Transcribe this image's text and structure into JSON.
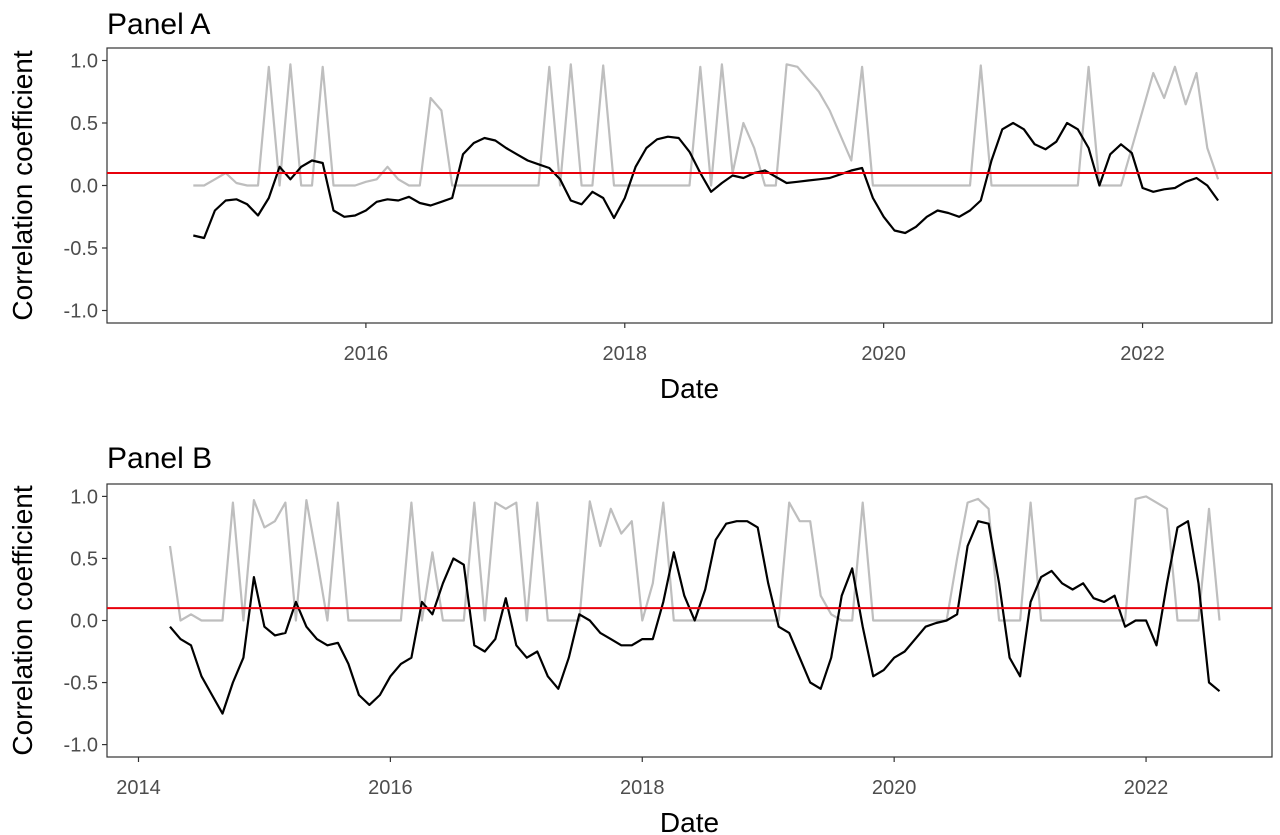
{
  "colors": {
    "primary_series": "#000000",
    "secondary_series": "#bebebe",
    "reference_line": "#e8000b",
    "frame": "#333333",
    "tick_text": "#4d4d4d"
  },
  "chart_data": [
    {
      "type": "line",
      "title": "Panel A",
      "xlabel": "Date",
      "ylabel": "Correlation coefficient",
      "xlim": [
        "2014-01-01",
        "2023-01-01"
      ],
      "ylim": [
        -1.1,
        1.1
      ],
      "x_ticks": [
        "2016",
        "2018",
        "2020",
        "2022"
      ],
      "y_ticks": [
        "1.0",
        "0.5",
        "0.0",
        "-0.5",
        "-1.0"
      ],
      "grid": false,
      "reference_line": 0.1,
      "x": [
        "2014-09",
        "2014-10",
        "2014-11",
        "2014-12",
        "2015-01",
        "2015-02",
        "2015-03",
        "2015-04",
        "2015-05",
        "2015-06",
        "2015-07",
        "2015-08",
        "2015-09",
        "2015-10",
        "2015-11",
        "2015-12",
        "2016-01",
        "2016-02",
        "2016-03",
        "2016-04",
        "2016-05",
        "2016-06",
        "2016-07",
        "2016-08",
        "2016-09",
        "2016-10",
        "2016-11",
        "2016-12",
        "2017-01",
        "2017-02",
        "2017-03",
        "2017-04",
        "2017-05",
        "2017-06",
        "2017-07",
        "2017-08",
        "2017-09",
        "2017-10",
        "2017-11",
        "2017-12",
        "2018-01",
        "2018-02",
        "2018-03",
        "2018-04",
        "2018-05",
        "2018-06",
        "2018-07",
        "2018-08",
        "2018-09",
        "2018-10",
        "2018-11",
        "2018-12",
        "2019-01",
        "2019-02",
        "2019-03",
        "2019-04",
        "2019-05",
        "2019-06",
        "2019-07",
        "2019-08",
        "2019-09",
        "2019-10",
        "2019-11",
        "2019-12",
        "2020-01",
        "2020-02",
        "2020-03",
        "2020-04",
        "2020-05",
        "2020-06",
        "2020-07",
        "2020-08",
        "2020-09",
        "2020-10",
        "2020-11",
        "2020-12",
        "2021-01",
        "2021-02",
        "2021-03",
        "2021-04",
        "2021-05",
        "2021-06",
        "2021-07",
        "2021-08",
        "2021-09",
        "2021-10",
        "2021-11",
        "2021-12",
        "2022-01",
        "2022-02",
        "2022-03",
        "2022-04",
        "2022-05",
        "2022-06",
        "2022-07",
        "2022-08"
      ],
      "series": [
        {
          "values": [
            -0.4,
            -0.42,
            -0.2,
            -0.12,
            -0.11,
            -0.15,
            -0.24,
            -0.1,
            0.15,
            0.05,
            0.15,
            0.2,
            0.18,
            -0.2,
            -0.25,
            -0.24,
            -0.2,
            -0.13,
            -0.11,
            -0.12,
            -0.09,
            -0.14,
            -0.16,
            -0.13,
            -0.1,
            0.25,
            0.34,
            0.38,
            0.36,
            0.3,
            0.25,
            0.2,
            0.17,
            0.14,
            0.05,
            -0.12,
            -0.15,
            -0.05,
            -0.1,
            -0.26,
            -0.1,
            0.15,
            0.3,
            0.37,
            0.39,
            0.38,
            0.27,
            0.1,
            -0.05,
            0.02,
            0.08,
            0.06,
            0.1,
            0.12,
            0.07,
            0.02,
            0.03,
            0.04,
            0.05,
            0.06,
            0.09,
            0.12,
            0.14,
            -0.1,
            -0.25,
            -0.36,
            -0.38,
            -0.33,
            -0.25,
            -0.2,
            -0.22,
            -0.25,
            -0.2,
            -0.12,
            0.2,
            0.45,
            0.5,
            0.45,
            0.33,
            0.29,
            0.35,
            0.5,
            0.45,
            0.3,
            0.0,
            0.25,
            0.33,
            0.26,
            -0.02,
            -0.05,
            -0.03,
            -0.02,
            0.03,
            0.06,
            0.0,
            -0.12
          ]
        },
        {
          "values": [
            0.0,
            0.0,
            0.05,
            0.1,
            0.02,
            0.0,
            0.0,
            0.95,
            0.0,
            0.97,
            0.0,
            0.0,
            0.95,
            0.0,
            0.0,
            0.0,
            0.03,
            0.05,
            0.15,
            0.05,
            0.0,
            0.0,
            0.7,
            0.6,
            0.0,
            0.0,
            0.0,
            0.0,
            0.0,
            0.0,
            0.0,
            0.0,
            0.0,
            0.95,
            0.0,
            0.97,
            0.0,
            0.0,
            0.96,
            0.0,
            0.0,
            0.0,
            0.0,
            0.0,
            0.0,
            0.0,
            0.0,
            0.95,
            0.0,
            0.97,
            0.1,
            0.5,
            0.3,
            0.0,
            0.0,
            0.97,
            0.95,
            0.85,
            0.75,
            0.6,
            0.4,
            0.2,
            0.95,
            0.0,
            0.0,
            0.0,
            0.0,
            0.0,
            0.0,
            0.0,
            0.0,
            0.0,
            0.0,
            0.96,
            0.0,
            0.0,
            0.0,
            0.0,
            0.0,
            0.0,
            0.0,
            0.0,
            0.0,
            0.95,
            0.0,
            0.0,
            0.0,
            0.3,
            0.6,
            0.9,
            0.7,
            0.95,
            0.65,
            0.9,
            0.3,
            0.05
          ]
        }
      ]
    },
    {
      "type": "line",
      "title": "Panel B",
      "xlabel": "Date",
      "ylabel": "Correlation coefficient",
      "xlim": [
        "2013-10-01",
        "2023-01-01"
      ],
      "ylim": [
        -1.1,
        1.1
      ],
      "x_ticks": [
        "2014",
        "2016",
        "2018",
        "2020",
        "2022"
      ],
      "y_ticks": [
        "1.0",
        "0.5",
        "0.0",
        "-0.5",
        "-1.0"
      ],
      "grid": false,
      "reference_line": 0.1,
      "x": [
        "2014-04",
        "2014-05",
        "2014-06",
        "2014-07",
        "2014-08",
        "2014-09",
        "2014-10",
        "2014-11",
        "2014-12",
        "2015-01",
        "2015-02",
        "2015-03",
        "2015-04",
        "2015-05",
        "2015-06",
        "2015-07",
        "2015-08",
        "2015-09",
        "2015-10",
        "2015-11",
        "2015-12",
        "2016-01",
        "2016-02",
        "2016-03",
        "2016-04",
        "2016-05",
        "2016-06",
        "2016-07",
        "2016-08",
        "2016-09",
        "2016-10",
        "2016-11",
        "2016-12",
        "2017-01",
        "2017-02",
        "2017-03",
        "2017-04",
        "2017-05",
        "2017-06",
        "2017-07",
        "2017-08",
        "2017-09",
        "2017-10",
        "2017-11",
        "2017-12",
        "2018-01",
        "2018-02",
        "2018-03",
        "2018-04",
        "2018-05",
        "2018-06",
        "2018-07",
        "2018-08",
        "2018-09",
        "2018-10",
        "2018-11",
        "2018-12",
        "2019-01",
        "2019-02",
        "2019-03",
        "2019-04",
        "2019-05",
        "2019-06",
        "2019-07",
        "2019-08",
        "2019-09",
        "2019-10",
        "2019-11",
        "2019-12",
        "2020-01",
        "2020-02",
        "2020-03",
        "2020-04",
        "2020-05",
        "2020-06",
        "2020-07",
        "2020-08",
        "2020-09",
        "2020-10",
        "2020-11",
        "2020-12",
        "2021-01",
        "2021-02",
        "2021-03",
        "2021-04",
        "2021-05",
        "2021-06",
        "2021-07",
        "2021-08",
        "2021-09",
        "2021-10",
        "2021-11",
        "2021-12",
        "2022-01",
        "2022-02",
        "2022-03",
        "2022-04",
        "2022-05",
        "2022-06",
        "2022-07",
        "2022-08"
      ],
      "series": [
        {
          "values": [
            -0.05,
            -0.15,
            -0.2,
            -0.45,
            -0.6,
            -0.75,
            -0.5,
            -0.3,
            0.35,
            -0.05,
            -0.12,
            -0.1,
            0.15,
            -0.05,
            -0.15,
            -0.2,
            -0.18,
            -0.35,
            -0.6,
            -0.68,
            -0.6,
            -0.45,
            -0.35,
            -0.3,
            0.15,
            0.05,
            0.3,
            0.5,
            0.45,
            -0.2,
            -0.25,
            -0.15,
            0.18,
            -0.2,
            -0.3,
            -0.25,
            -0.45,
            -0.55,
            -0.3,
            0.05,
            0.0,
            -0.1,
            -0.15,
            -0.2,
            -0.2,
            -0.15,
            -0.15,
            0.15,
            0.55,
            0.2,
            0.0,
            0.25,
            0.65,
            0.78,
            0.8,
            0.8,
            0.75,
            0.3,
            -0.05,
            -0.1,
            -0.3,
            -0.5,
            -0.55,
            -0.3,
            0.2,
            0.42,
            -0.05,
            -0.45,
            -0.4,
            -0.3,
            -0.25,
            -0.15,
            -0.05,
            -0.02,
            0.0,
            0.05,
            0.6,
            0.8,
            0.78,
            0.3,
            -0.3,
            -0.45,
            0.15,
            0.35,
            0.4,
            0.3,
            0.25,
            0.3,
            0.18,
            0.15,
            0.2,
            -0.05,
            0.0,
            0.0,
            -0.2,
            0.3,
            0.75,
            0.8,
            0.3,
            -0.5,
            -0.57
          ]
        },
        {
          "values": [
            0.6,
            0.0,
            0.05,
            0.0,
            0.0,
            0.0,
            0.95,
            0.0,
            0.97,
            0.75,
            0.8,
            0.95,
            0.0,
            0.97,
            0.5,
            0.0,
            0.95,
            0.0,
            0.0,
            0.0,
            0.0,
            0.0,
            0.0,
            0.95,
            0.0,
            0.55,
            0.0,
            0.0,
            0.0,
            0.95,
            0.0,
            0.95,
            0.9,
            0.95,
            0.0,
            0.95,
            0.0,
            0.0,
            0.0,
            0.0,
            0.96,
            0.6,
            0.9,
            0.7,
            0.8,
            0.0,
            0.3,
            0.95,
            0.0,
            0.0,
            0.0,
            0.0,
            0.0,
            0.0,
            0.0,
            0.0,
            0.0,
            0.0,
            0.0,
            0.95,
            0.8,
            0.8,
            0.2,
            0.05,
            0.0,
            0.0,
            0.95,
            0.0,
            0.0,
            0.0,
            0.0,
            0.0,
            0.0,
            0.0,
            0.0,
            0.5,
            0.95,
            0.98,
            0.9,
            0.0,
            0.0,
            0.0,
            0.95,
            0.0,
            0.0,
            0.0,
            0.0,
            0.0,
            0.0,
            0.0,
            0.0,
            0.0,
            0.98,
            1.0,
            0.95,
            0.9,
            0.0,
            0.0,
            0.0,
            0.9,
            0.0
          ]
        }
      ]
    }
  ]
}
